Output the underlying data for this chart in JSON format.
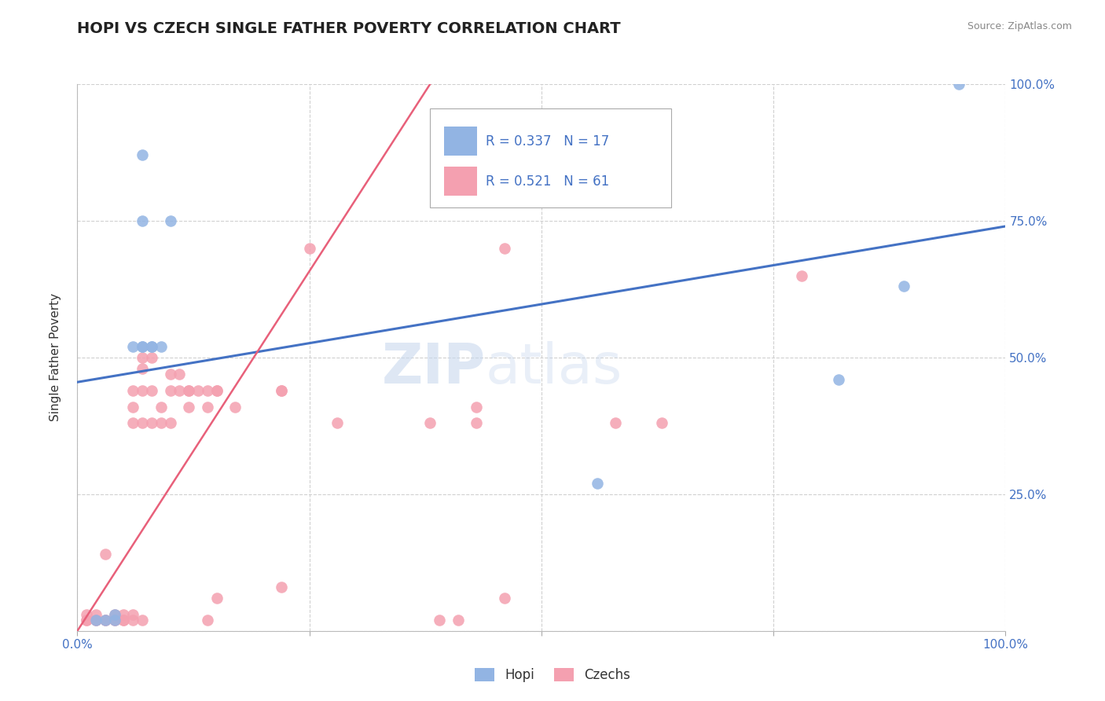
{
  "title": "HOPI VS CZECH SINGLE FATHER POVERTY CORRELATION CHART",
  "source": "Source: ZipAtlas.com",
  "ylabel": "Single Father Poverty",
  "legend_hopi_label": "Hopi",
  "legend_czech_label": "Czechs",
  "hopi_R": "R = 0.337",
  "hopi_N": "N = 17",
  "czech_R": "R = 0.521",
  "czech_N": "N = 61",
  "xlim": [
    0.0,
    1.0
  ],
  "ylim": [
    0.0,
    1.0
  ],
  "xticks": [
    0.0,
    0.25,
    0.5,
    0.75,
    1.0
  ],
  "xtick_labels": [
    "0.0%",
    "",
    "",
    "",
    "100.0%"
  ],
  "ytick_labels_right": [
    "",
    "25.0%",
    "50.0%",
    "75.0%",
    "100.0%"
  ],
  "hopi_color": "#92b4e3",
  "czech_color": "#f4a0b0",
  "hopi_line_color": "#4472c4",
  "czech_line_color": "#e8607a",
  "watermark_zip": "ZIP",
  "watermark_atlas": "atlas",
  "background_color": "#ffffff",
  "grid_color": "#d0d0d0",
  "hopi_points": [
    [
      0.02,
      0.02
    ],
    [
      0.03,
      0.02
    ],
    [
      0.04,
      0.02
    ],
    [
      0.04,
      0.03
    ],
    [
      0.06,
      0.52
    ],
    [
      0.07,
      0.52
    ],
    [
      0.07,
      0.52
    ],
    [
      0.08,
      0.52
    ],
    [
      0.07,
      0.75
    ],
    [
      0.07,
      0.87
    ],
    [
      0.08,
      0.52
    ],
    [
      0.09,
      0.52
    ],
    [
      0.1,
      0.75
    ],
    [
      0.56,
      0.27
    ],
    [
      0.82,
      0.46
    ],
    [
      0.89,
      0.63
    ],
    [
      0.95,
      1.0
    ]
  ],
  "czech_points": [
    [
      0.01,
      0.02
    ],
    [
      0.01,
      0.02
    ],
    [
      0.01,
      0.03
    ],
    [
      0.02,
      0.02
    ],
    [
      0.02,
      0.02
    ],
    [
      0.02,
      0.03
    ],
    [
      0.03,
      0.02
    ],
    [
      0.03,
      0.02
    ],
    [
      0.03,
      0.14
    ],
    [
      0.04,
      0.02
    ],
    [
      0.04,
      0.03
    ],
    [
      0.04,
      0.02
    ],
    [
      0.05,
      0.02
    ],
    [
      0.05,
      0.03
    ],
    [
      0.05,
      0.02
    ],
    [
      0.06,
      0.02
    ],
    [
      0.06,
      0.03
    ],
    [
      0.06,
      0.38
    ],
    [
      0.06,
      0.41
    ],
    [
      0.06,
      0.44
    ],
    [
      0.07,
      0.02
    ],
    [
      0.07,
      0.38
    ],
    [
      0.07,
      0.44
    ],
    [
      0.07,
      0.48
    ],
    [
      0.07,
      0.5
    ],
    [
      0.08,
      0.38
    ],
    [
      0.08,
      0.44
    ],
    [
      0.08,
      0.5
    ],
    [
      0.09,
      0.38
    ],
    [
      0.09,
      0.41
    ],
    [
      0.1,
      0.38
    ],
    [
      0.1,
      0.44
    ],
    [
      0.1,
      0.47
    ],
    [
      0.11,
      0.44
    ],
    [
      0.11,
      0.47
    ],
    [
      0.12,
      0.41
    ],
    [
      0.12,
      0.44
    ],
    [
      0.12,
      0.44
    ],
    [
      0.13,
      0.44
    ],
    [
      0.14,
      0.02
    ],
    [
      0.14,
      0.41
    ],
    [
      0.14,
      0.44
    ],
    [
      0.15,
      0.06
    ],
    [
      0.15,
      0.44
    ],
    [
      0.15,
      0.44
    ],
    [
      0.17,
      0.41
    ],
    [
      0.22,
      0.08
    ],
    [
      0.22,
      0.44
    ],
    [
      0.22,
      0.44
    ],
    [
      0.25,
      0.7
    ],
    [
      0.28,
      0.38
    ],
    [
      0.38,
      0.38
    ],
    [
      0.39,
      0.02
    ],
    [
      0.41,
      0.02
    ],
    [
      0.43,
      0.38
    ],
    [
      0.43,
      0.41
    ],
    [
      0.46,
      0.06
    ],
    [
      0.46,
      0.7
    ],
    [
      0.58,
      0.38
    ],
    [
      0.63,
      0.38
    ],
    [
      0.78,
      0.65
    ]
  ],
  "hopi_trendline": [
    [
      0.0,
      0.455
    ],
    [
      1.0,
      0.74
    ]
  ],
  "czech_trendline": [
    [
      0.0,
      0.0
    ],
    [
      0.38,
      1.0
    ]
  ]
}
